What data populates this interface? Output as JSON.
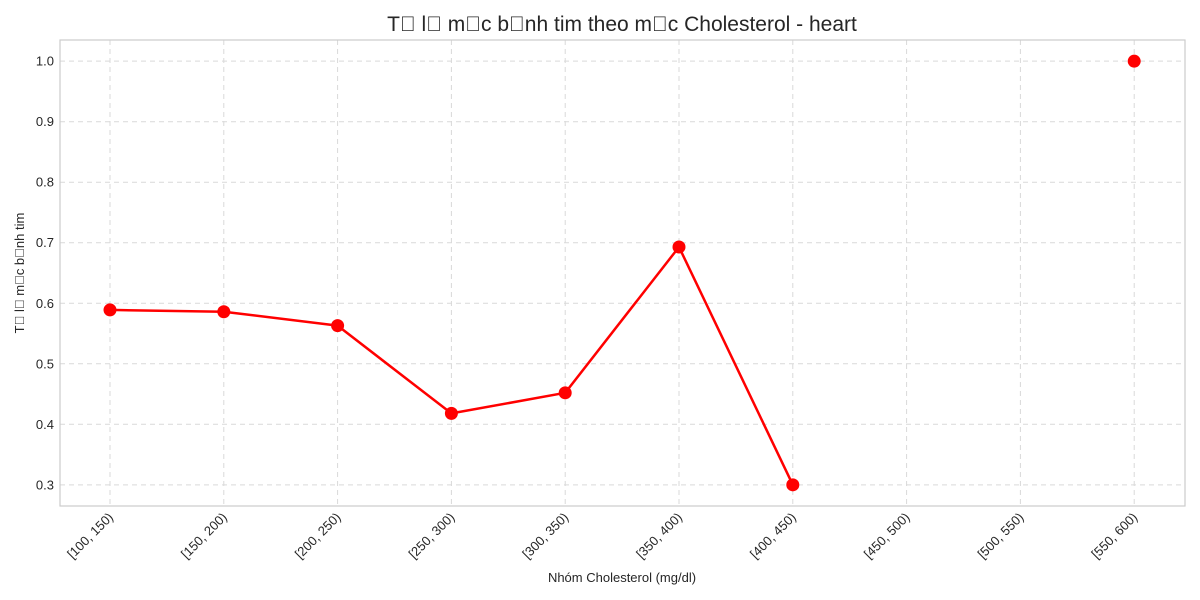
{
  "chart_data": {
    "type": "line",
    "title": "T\u0000 l\u0000 m\u0000c b\u0000nh tim theo m\u0000c Cholesterol - heart",
    "xlabel": "Nhóm Cholesterol (mg/dl)",
    "ylabel": "T\u0000 l\u0000 m\u0000c b\u0000nh tim",
    "categories": [
      "[100, 150)",
      "[150, 200)",
      "[200, 250)",
      "[250, 300)",
      "[300, 350)",
      "[350, 400)",
      "[400, 450)",
      "[450, 500)",
      "[500, 550)",
      "[550, 600)"
    ],
    "values": [
      0.589,
      0.586,
      0.563,
      0.418,
      0.452,
      0.693,
      0.3,
      null,
      null,
      1.0
    ],
    "ylim": [
      0.265,
      1.035
    ],
    "yticks": [
      "0.3",
      "0.4",
      "0.5",
      "0.6",
      "0.7",
      "0.8",
      "0.9",
      "1.0"
    ],
    "grid": true,
    "line_color": "#ff0000",
    "marker_color": "#ff0000"
  }
}
